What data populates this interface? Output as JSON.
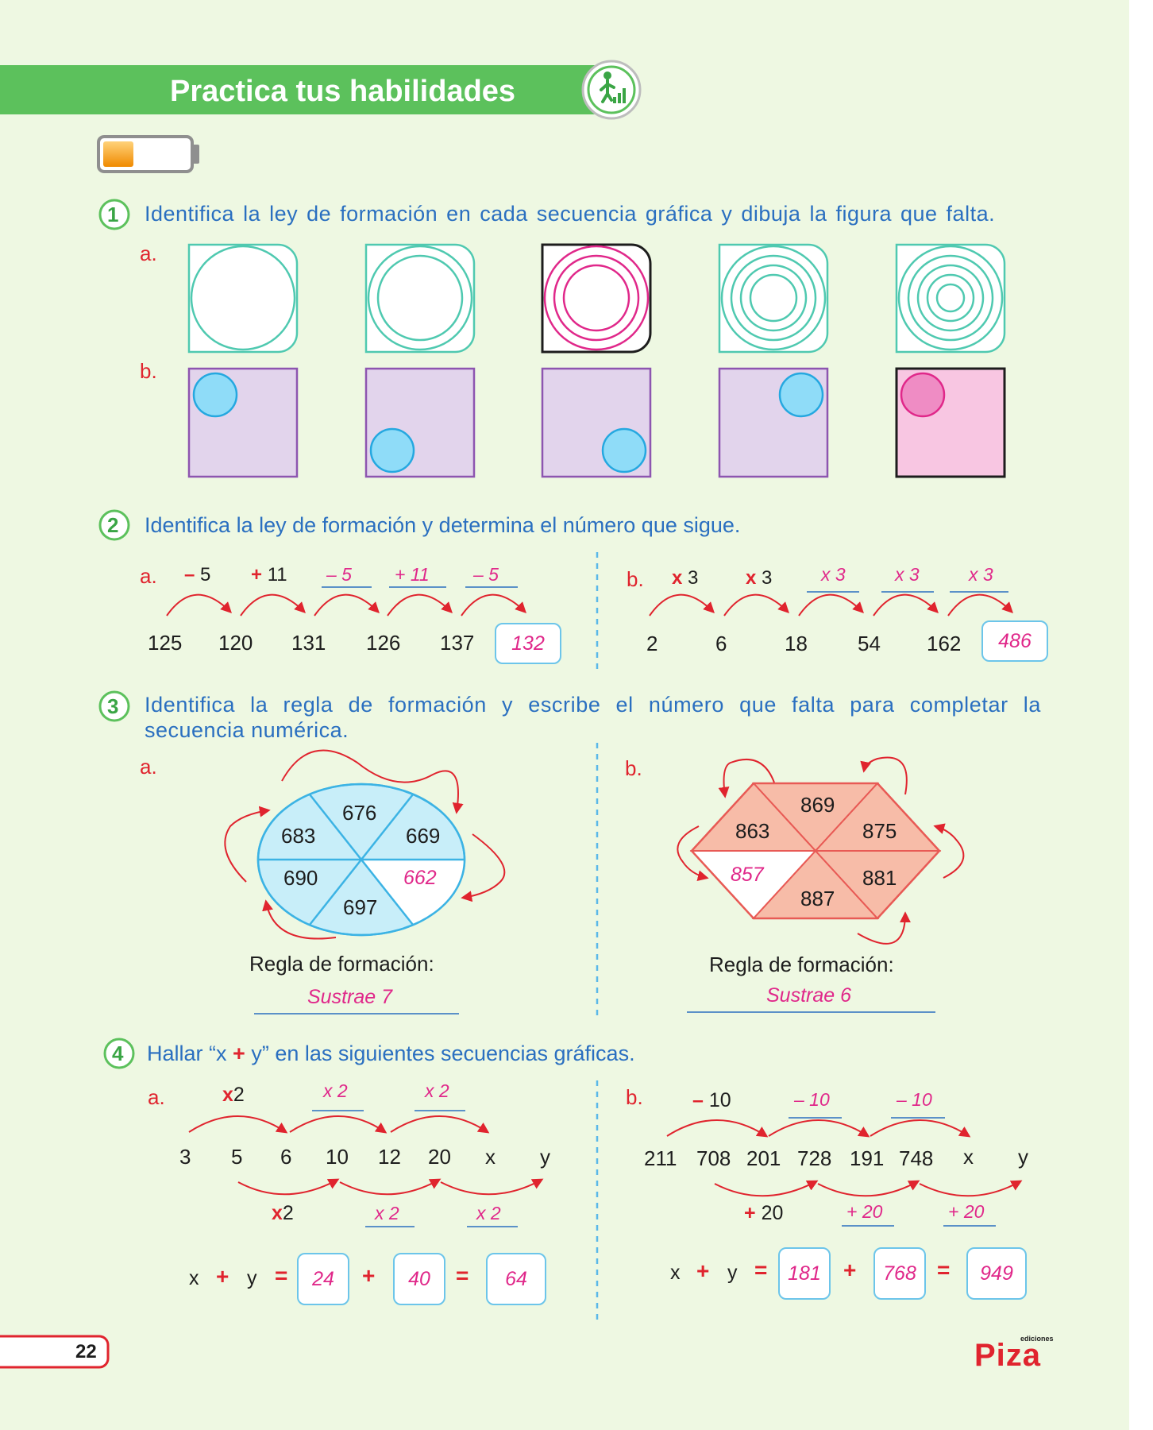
{
  "header": {
    "title": "Practica tus habilidades",
    "icon": "progress-person-icon",
    "battery_icon": "battery-level-icon"
  },
  "colors": {
    "accent_green": "#5cc15c",
    "text_blue": "#2a6fc0",
    "answer_magenta": "#e0288a",
    "arrow_red": "#e0242e"
  },
  "ex1": {
    "number": "1",
    "instruction": "Identifica la ley de formación en cada secuencia gráfica y dibuja la figura que falta.",
    "a_label": "a.",
    "b_label": "b.",
    "a_rings": [
      1,
      2,
      3,
      4,
      5
    ],
    "b_positions": [
      "top-left",
      "bottom-left",
      "bottom-right",
      "top-right",
      "top-left"
    ]
  },
  "ex2": {
    "number": "2",
    "instruction": "Identifica la ley de formación y determina el número que sigue.",
    "a": {
      "label": "a.",
      "ops": [
        {
          "sign": "–",
          "val": "5"
        },
        {
          "sign": "+",
          "val": "11"
        }
      ],
      "answer_ops": [
        "– 5",
        "+ 11",
        "– 5"
      ],
      "numbers": [
        "125",
        "120",
        "131",
        "126",
        "137"
      ],
      "answer": "132"
    },
    "b": {
      "label": "b.",
      "ops": [
        {
          "sign": "x",
          "val": "3"
        },
        {
          "sign": "x",
          "val": "3"
        }
      ],
      "answer_ops": [
        "x 3",
        "x 3",
        "x 3"
      ],
      "numbers": [
        "2",
        "6",
        "18",
        "54",
        "162"
      ],
      "answer": "486"
    }
  },
  "ex3": {
    "number": "3",
    "instruction_line1": "Identifica la regla de formación y escribe el número que falta para completar la",
    "instruction_line2": "secuencia numérica.",
    "a": {
      "label": "a.",
      "values": [
        "676",
        "669",
        "683",
        "690",
        "697"
      ],
      "answer_value": "662",
      "rule_label": "Regla de formación:",
      "rule_answer": "Sustrae 7"
    },
    "b": {
      "label": "b.",
      "values": [
        "869",
        "863",
        "875",
        "881",
        "887"
      ],
      "answer_value": "857",
      "rule_label": "Regla de formación:",
      "rule_answer": "Sustrae 6"
    }
  },
  "ex4": {
    "number": "4",
    "instruction_pre": "Hallar “x",
    "instruction_plus": "+",
    "instruction_post": "y” en las siguientes secuencias gráficas.",
    "a": {
      "label": "a.",
      "top_op_sign": "x",
      "top_op_val": "2",
      "top_answers": [
        "x 2",
        "x 2"
      ],
      "bottom_op_sign": "x",
      "bottom_op_val": "2",
      "bottom_answers": [
        "x 2",
        "x 2"
      ],
      "numbers": [
        "3",
        "5",
        "6",
        "10",
        "12",
        "20",
        "x",
        "y"
      ],
      "eq": {
        "x": "x",
        "plus": "+",
        "y": "y",
        "equals": "=",
        "v1": "24",
        "v2": "40",
        "v3": "64"
      }
    },
    "b": {
      "label": "b.",
      "top_op_sign": "–",
      "top_op_val": "10",
      "top_answers": [
        "– 10",
        "– 10"
      ],
      "bottom_op_sign": "+",
      "bottom_op_val": "20",
      "bottom_answers": [
        "+ 20",
        "+ 20"
      ],
      "numbers": [
        "211",
        "708",
        "201",
        "728",
        "191",
        "748",
        "x",
        "y"
      ],
      "eq": {
        "x": "x",
        "plus": "+",
        "y": "y",
        "equals": "=",
        "v1": "181",
        "v2": "768",
        "v3": "949"
      }
    }
  },
  "footer": {
    "page_number": "22",
    "brand": "Piza",
    "brand_small": "ediciones"
  }
}
